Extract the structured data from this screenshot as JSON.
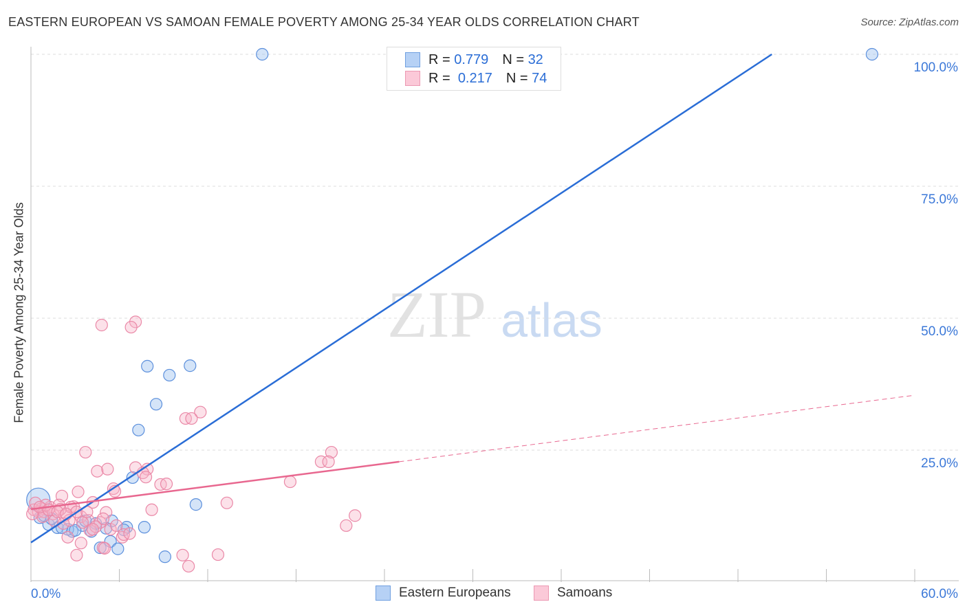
{
  "title": "EASTERN EUROPEAN VS SAMOAN FEMALE POVERTY AMONG 25-34 YEAR OLDS CORRELATION CHART",
  "source": "Source: ZipAtlas.com",
  "watermark": {
    "zip": "ZIP",
    "atlas": "atlas"
  },
  "legend": {
    "rows": [
      {
        "r_label": "R =",
        "r": "0.779",
        "n_label": "N =",
        "n": "32"
      },
      {
        "r_label": "R =",
        "r": "0.217",
        "n_label": "N =",
        "n": "74"
      }
    ]
  },
  "chart_data": {
    "type": "scatter",
    "title": "EASTERN EUROPEAN VS SAMOAN FEMALE POVERTY AMONG 25-34 YEAR OLDS CORRELATION CHART",
    "xlabel": "",
    "ylabel": "Female Poverty Among 25-34 Year Olds",
    "xlim": [
      0,
      60
    ],
    "ylim": [
      0,
      100
    ],
    "x_tick_labels": [
      "0.0%",
      "60.0%"
    ],
    "y_tick_labels": [
      {
        "v": 100,
        "label": "100.0%"
      },
      {
        "v": 75,
        "label": "75.0%"
      },
      {
        "v": 50,
        "label": "50.0%"
      },
      {
        "v": 25,
        "label": "25.0%"
      }
    ],
    "grid": true,
    "legend_placement": "bottom",
    "colors": {
      "blue": "#4a86d8",
      "pink": "#e87fa0",
      "blue_line": "#2a6dd6",
      "pink_line": "#e8678f"
    },
    "series": [
      {
        "name": "Eastern Europeans",
        "color": "blue",
        "trend": {
          "x0": 0,
          "y0": 7.5,
          "x1": 50.3,
          "y1": 100,
          "dashed_to": null
        },
        "points": [
          [
            15.7,
            100
          ],
          [
            57.1,
            100
          ],
          [
            7.9,
            40.9
          ],
          [
            9.4,
            39.2
          ],
          [
            10.8,
            41.0
          ],
          [
            8.5,
            33.7
          ],
          [
            7.3,
            28.8
          ],
          [
            6.9,
            19.8
          ],
          [
            11.2,
            14.7
          ],
          [
            5.5,
            11.6
          ],
          [
            6.5,
            10.4
          ],
          [
            7.7,
            10.4
          ],
          [
            6.3,
            9.9
          ],
          [
            5.1,
            10.2
          ],
          [
            4.1,
            9.6
          ],
          [
            2.8,
            9.6
          ],
          [
            2.5,
            10.0
          ],
          [
            1.8,
            10.3
          ],
          [
            1.2,
            10.9
          ],
          [
            0.6,
            12.2
          ],
          [
            0.5,
            15.6,
            "big"
          ],
          [
            0.9,
            12.6
          ],
          [
            3.5,
            10.7
          ],
          [
            4.4,
            11.1
          ],
          [
            3.7,
            11.6
          ],
          [
            5.4,
            7.7
          ],
          [
            4.7,
            6.5
          ],
          [
            5.9,
            6.3
          ],
          [
            9.1,
            4.8
          ],
          [
            3.0,
            9.8
          ],
          [
            2.1,
            10.3
          ],
          [
            1.4,
            12.0
          ]
        ]
      },
      {
        "name": "Samoans",
        "color": "pink",
        "trend": {
          "x0": 0,
          "y0": 13.8,
          "x1": 25,
          "y1": 22.8,
          "dashed_to": [
            60,
            35.4
          ]
        },
        "points": [
          [
            4.8,
            48.7
          ],
          [
            7.1,
            49.3
          ],
          [
            6.8,
            48.3
          ],
          [
            11.5,
            32.2
          ],
          [
            10.5,
            31.0
          ],
          [
            10.9,
            31.0
          ],
          [
            3.7,
            24.6
          ],
          [
            20.4,
            24.6
          ],
          [
            19.7,
            22.8
          ],
          [
            20.2,
            22.8
          ],
          [
            4.5,
            21.0
          ],
          [
            5.2,
            21.4
          ],
          [
            7.9,
            21.4
          ],
          [
            7.6,
            20.7
          ],
          [
            7.8,
            19.9
          ],
          [
            7.1,
            21.7
          ],
          [
            8.8,
            18.5
          ],
          [
            9.2,
            18.6
          ],
          [
            17.6,
            19.0
          ],
          [
            3.2,
            17.1
          ],
          [
            2.1,
            16.3
          ],
          [
            5.6,
            17.7
          ],
          [
            5.7,
            17.2
          ],
          [
            13.3,
            15.0
          ],
          [
            8.2,
            13.7
          ],
          [
            22.0,
            12.6
          ],
          [
            21.4,
            10.7
          ],
          [
            5.1,
            13.2
          ],
          [
            4.2,
            15.1
          ],
          [
            2.9,
            14.3
          ],
          [
            1.3,
            14.2
          ],
          [
            1.9,
            14.6
          ],
          [
            0.7,
            13.9
          ],
          [
            0.2,
            13.7
          ],
          [
            0.5,
            13.3
          ],
          [
            0.9,
            13.3
          ],
          [
            1.5,
            12.9
          ],
          [
            2.3,
            12.6
          ],
          [
            2.6,
            11.7
          ],
          [
            3.4,
            12.4
          ],
          [
            3.9,
            11.7
          ],
          [
            4.7,
            11.3
          ],
          [
            4.9,
            12.0
          ],
          [
            2.7,
            14.2
          ],
          [
            3.1,
            13.3
          ],
          [
            2.0,
            13.8
          ],
          [
            1.0,
            14.6
          ],
          [
            0.3,
            15.0
          ],
          [
            6.2,
            8.5
          ],
          [
            6.3,
            9.0
          ],
          [
            6.7,
            9.2
          ],
          [
            2.5,
            8.5
          ],
          [
            3.4,
            7.4
          ],
          [
            3.1,
            5.1
          ],
          [
            4.9,
            6.5
          ],
          [
            5.0,
            6.4
          ],
          [
            10.3,
            5.1
          ],
          [
            12.7,
            5.2
          ],
          [
            10.7,
            3.0
          ],
          [
            4.0,
            9.8
          ],
          [
            4.4,
            10.5
          ],
          [
            5.4,
            10.0
          ],
          [
            0.8,
            12.4
          ],
          [
            1.6,
            11.6
          ],
          [
            2.2,
            11.1
          ],
          [
            3.5,
            11.3
          ],
          [
            4.2,
            10.0
          ],
          [
            5.8,
            10.7
          ],
          [
            0.1,
            12.9
          ],
          [
            0.6,
            14.2
          ],
          [
            1.2,
            13.7
          ],
          [
            1.8,
            13.3
          ],
          [
            2.4,
            12.9
          ],
          [
            3.8,
            13.3
          ]
        ]
      }
    ]
  }
}
